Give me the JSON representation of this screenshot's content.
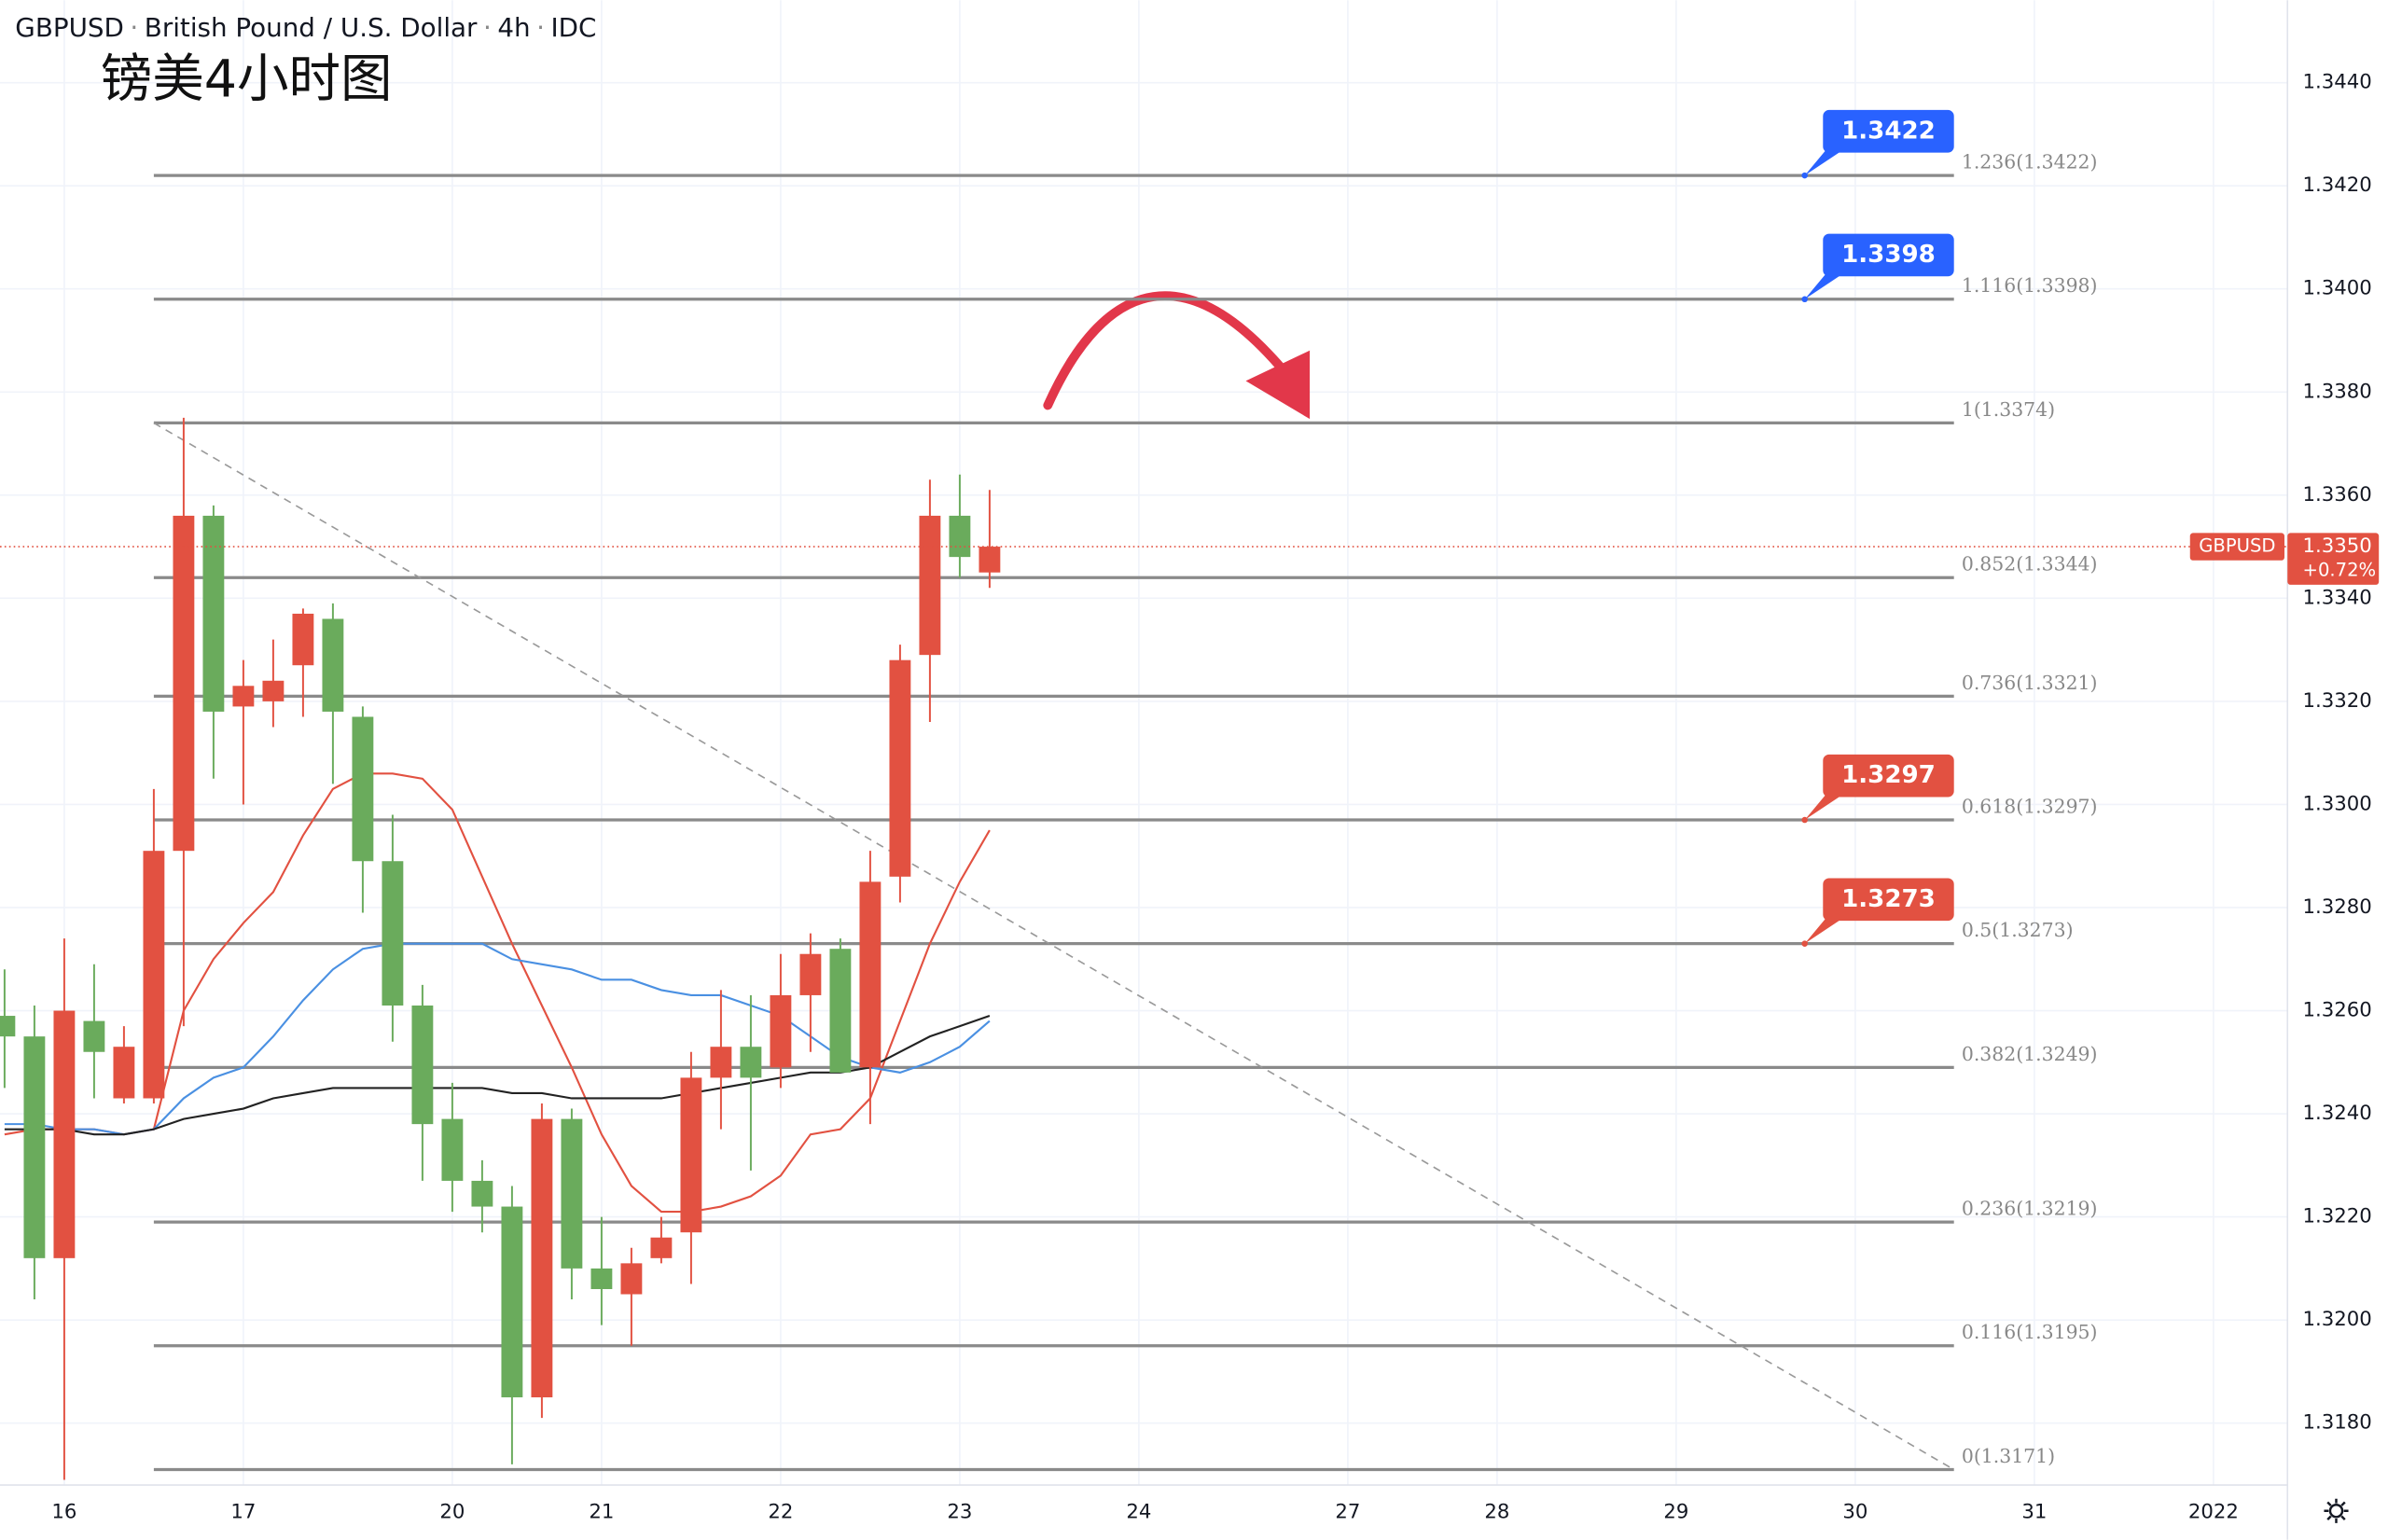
{
  "chart_data": {
    "type": "candlestick",
    "title": {
      "symbol": "GBPUSD",
      "name": "British Pound / U.S. Dollar",
      "interval": "4h",
      "source": "IDC"
    },
    "annotation": "镑美4小时图",
    "up_color": "#e25141",
    "down_color": "#6aab5c",
    "open": [
      1.3259,
      1.3255,
      1.3212,
      1.3258,
      1.3243,
      1.3243,
      1.3291,
      1.3356,
      1.3319,
      1.332,
      1.3327,
      1.3336,
      1.3317,
      1.3289,
      1.3261,
      1.3239,
      1.3227,
      1.3222,
      1.3185,
      1.3239,
      1.321,
      1.3205,
      1.3212,
      1.3217,
      1.3247,
      1.3253,
      1.3249,
      1.3263,
      1.3272,
      1.3249,
      1.3286,
      1.3329,
      1.3356,
      1.3345
    ],
    "high": [
      1.3268,
      1.3261,
      1.3274,
      1.3269,
      1.3257,
      1.3303,
      1.3375,
      1.3358,
      1.3328,
      1.3332,
      1.3338,
      1.3339,
      1.3319,
      1.3298,
      1.3265,
      1.3246,
      1.3231,
      1.3226,
      1.3242,
      1.3241,
      1.322,
      1.3214,
      1.322,
      1.3252,
      1.3264,
      1.3263,
      1.3271,
      1.3275,
      1.3274,
      1.3291,
      1.3331,
      1.3363,
      1.3364,
      1.3361
    ],
    "low": [
      1.3245,
      1.3204,
      1.3169,
      1.3243,
      1.3242,
      1.3242,
      1.3257,
      1.3305,
      1.33,
      1.3315,
      1.3317,
      1.3304,
      1.3279,
      1.3254,
      1.3227,
      1.3221,
      1.3217,
      1.3172,
      1.3181,
      1.3204,
      1.3199,
      1.3195,
      1.3211,
      1.3207,
      1.3237,
      1.3229,
      1.3245,
      1.3252,
      1.3248,
      1.3238,
      1.3281,
      1.3316,
      1.3344,
      1.3342
    ],
    "close": [
      1.3255,
      1.3212,
      1.326,
      1.3252,
      1.3253,
      1.3291,
      1.3356,
      1.3318,
      1.3323,
      1.3324,
      1.3337,
      1.3318,
      1.3289,
      1.3261,
      1.3238,
      1.3227,
      1.3222,
      1.3185,
      1.3239,
      1.321,
      1.3206,
      1.3211,
      1.3216,
      1.3247,
      1.3253,
      1.3247,
      1.3263,
      1.3271,
      1.3248,
      1.3285,
      1.3328,
      1.3356,
      1.3348,
      1.335
    ],
    "lines": [
      {
        "color": "#e25141",
        "values": [
          1.3236,
          1.3237,
          1.3237,
          1.3237,
          1.3236,
          1.3237,
          1.326,
          1.327,
          1.3277,
          1.3283,
          1.3294,
          1.3303,
          1.3306,
          1.3306,
          1.3305,
          1.3299,
          1.3286,
          1.3273,
          1.3261,
          1.3249,
          1.3236,
          1.3226,
          1.3221,
          1.3221,
          1.3222,
          1.3224,
          1.3228,
          1.3236,
          1.3237,
          1.3243,
          1.3258,
          1.3273,
          1.3285,
          1.3295
        ]
      },
      {
        "color": "#4a90e2",
        "values": [
          1.3238,
          1.3238,
          1.3237,
          1.3237,
          1.3236,
          1.3237,
          1.3243,
          1.3247,
          1.3249,
          1.3255,
          1.3262,
          1.3268,
          1.3272,
          1.3273,
          1.3273,
          1.3273,
          1.3273,
          1.327,
          1.3269,
          1.3268,
          1.3266,
          1.3266,
          1.3264,
          1.3263,
          1.3263,
          1.3261,
          1.3259,
          1.3255,
          1.3251,
          1.3249,
          1.3248,
          1.325,
          1.3253,
          1.3258
        ]
      },
      {
        "color": "#222222",
        "values": [
          1.3237,
          1.3237,
          1.3237,
          1.3236,
          1.3236,
          1.3237,
          1.3239,
          1.324,
          1.3241,
          1.3243,
          1.3244,
          1.3245,
          1.3245,
          1.3245,
          1.3245,
          1.3245,
          1.3245,
          1.3244,
          1.3244,
          1.3243,
          1.3243,
          1.3243,
          1.3243,
          1.3244,
          1.3245,
          1.3246,
          1.3247,
          1.3248,
          1.3248,
          1.3249,
          1.3252,
          1.3255,
          1.3257,
          1.3259
        ]
      }
    ],
    "levels": [
      {
        "label": "1.236(1.3422)",
        "value": 1.3422
      },
      {
        "label": "1.116(1.3398)",
        "value": 1.3398
      },
      {
        "label": "1(1.3374)",
        "value": 1.3374
      },
      {
        "label": "0.852(1.3344)",
        "value": 1.3344
      },
      {
        "label": "0.736(1.3321)",
        "value": 1.3321
      },
      {
        "label": "0.618(1.3297)",
        "value": 1.3297
      },
      {
        "label": "0.5(1.3273)",
        "value": 1.3273
      },
      {
        "label": "0.382(1.3249)",
        "value": 1.3249
      },
      {
        "label": "0.236(1.3219)",
        "value": 1.3219
      },
      {
        "label": "0.116(1.3195)",
        "value": 1.3195
      },
      {
        "label": "0(1.3171)",
        "value": 1.3171
      }
    ],
    "callouts": [
      {
        "text": "1.3422",
        "value": 1.3422,
        "color": "#2962ff"
      },
      {
        "text": "1.3398",
        "value": 1.3398,
        "color": "#2962ff"
      },
      {
        "text": "1.3297",
        "value": 1.3297,
        "color": "#e25141"
      },
      {
        "text": "1.3273",
        "value": 1.3273,
        "color": "#e25141"
      }
    ],
    "trendline": {
      "from": [
        5,
        1.3374
      ],
      "to": [
        65.3,
        1.3171
      ]
    },
    "last": {
      "name": "GBPUSD",
      "value": 1.335,
      "value_label": "1.3350",
      "change": "+0.72%",
      "color": "#e25141"
    },
    "ylim": [
      1.3168,
      1.3456
    ],
    "yticks": [
      {
        "value": 1.318,
        "label": "1.3180"
      },
      {
        "value": 1.32,
        "label": "1.3200"
      },
      {
        "value": 1.322,
        "label": "1.3220"
      },
      {
        "value": 1.324,
        "label": "1.3240"
      },
      {
        "value": 1.326,
        "label": "1.3260"
      },
      {
        "value": 1.328,
        "label": "1.3280"
      },
      {
        "value": 1.33,
        "label": "1.3300"
      },
      {
        "value": 1.332,
        "label": "1.3320"
      },
      {
        "value": 1.334,
        "label": "1.3340"
      },
      {
        "value": 1.336,
        "label": "1.3360"
      },
      {
        "value": 1.338,
        "label": "1.3380"
      },
      {
        "value": 1.34,
        "label": "1.3400"
      },
      {
        "value": 1.342,
        "label": "1.3420"
      },
      {
        "value": 1.344,
        "label": "1.3440"
      }
    ],
    "xticks": [
      {
        "value": 2,
        "label": "16"
      },
      {
        "value": 8,
        "label": "17"
      },
      {
        "value": 15,
        "label": "20"
      },
      {
        "value": 20,
        "label": "21"
      },
      {
        "value": 26,
        "label": "22"
      },
      {
        "value": 32,
        "label": "23"
      },
      {
        "value": 38,
        "label": "24"
      },
      {
        "value": 45,
        "label": "27"
      },
      {
        "value": 50,
        "label": "28"
      },
      {
        "value": 56,
        "label": "29"
      },
      {
        "value": 62,
        "label": "30"
      },
      {
        "value": 68,
        "label": "31"
      },
      {
        "value": 74,
        "label": "2022"
      }
    ]
  }
}
